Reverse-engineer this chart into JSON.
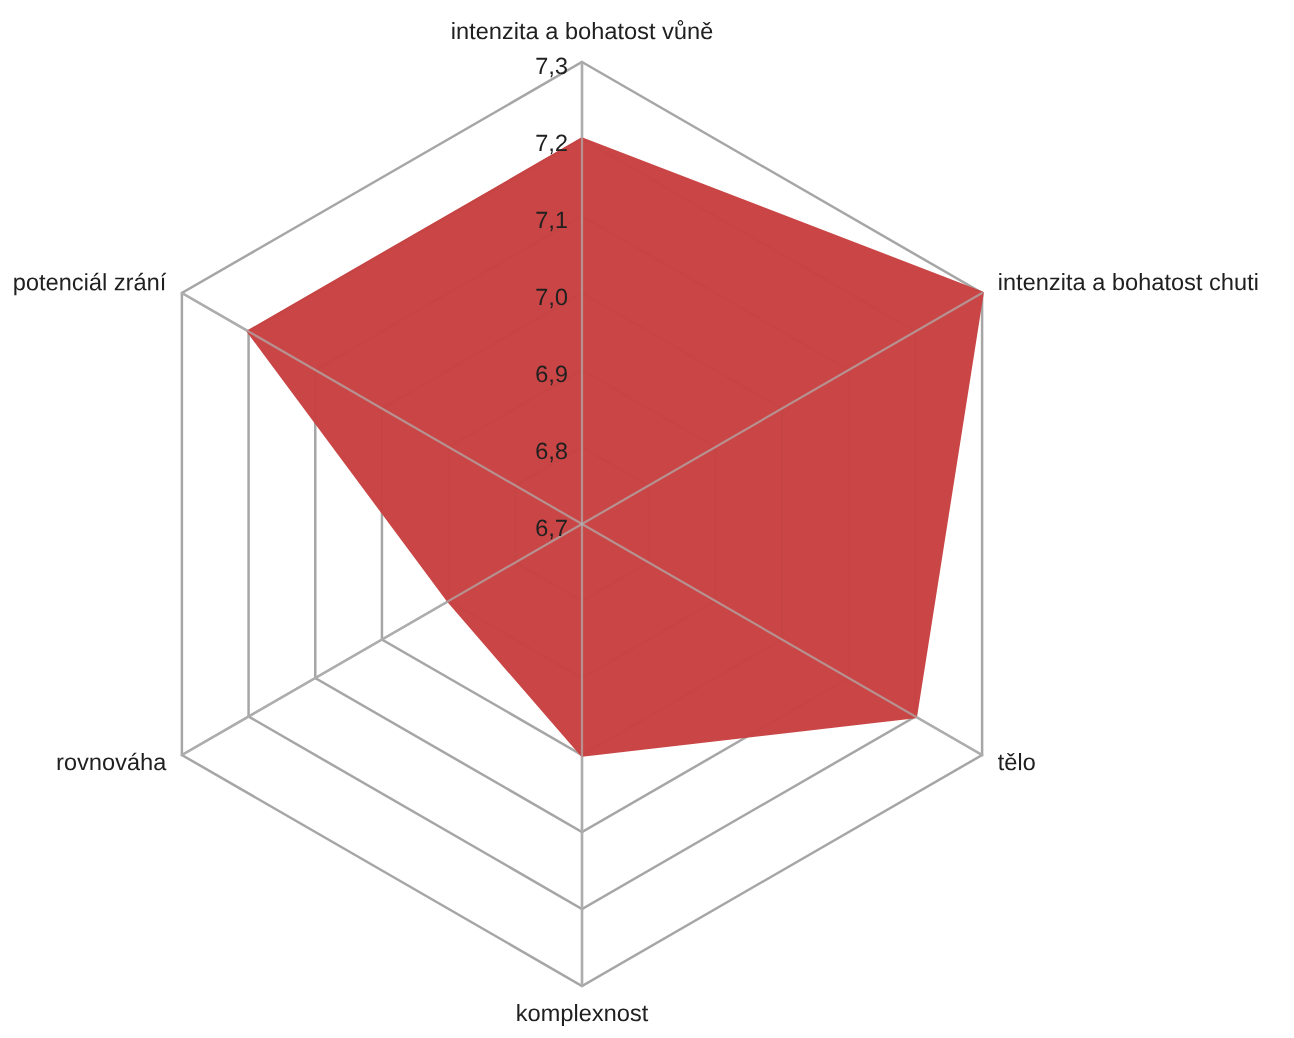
{
  "chart_data": {
    "type": "radar",
    "categories": [
      "intenzita a bohatost vůně",
      "intenzita a bohatost chuti",
      "tělo",
      "komplexnost",
      "rovnováha",
      "potenciál zrání"
    ],
    "series": [
      {
        "color": "#c94141",
        "values": [
          7.2,
          7.3,
          7.2,
          7.0,
          6.9,
          7.2
        ]
      }
    ],
    "ylim": [
      6.7,
      7.3
    ],
    "yticks": [
      {
        "value": 6.7,
        "label": "6,7"
      },
      {
        "value": 6.8,
        "label": "6,8"
      },
      {
        "value": 6.9,
        "label": "6,9"
      },
      {
        "value": 7.0,
        "label": "7,0"
      },
      {
        "value": 7.1,
        "label": "7,1"
      },
      {
        "value": 7.2,
        "label": "7,2"
      },
      {
        "value": 7.3,
        "label": "7,3"
      }
    ],
    "grid": true
  }
}
